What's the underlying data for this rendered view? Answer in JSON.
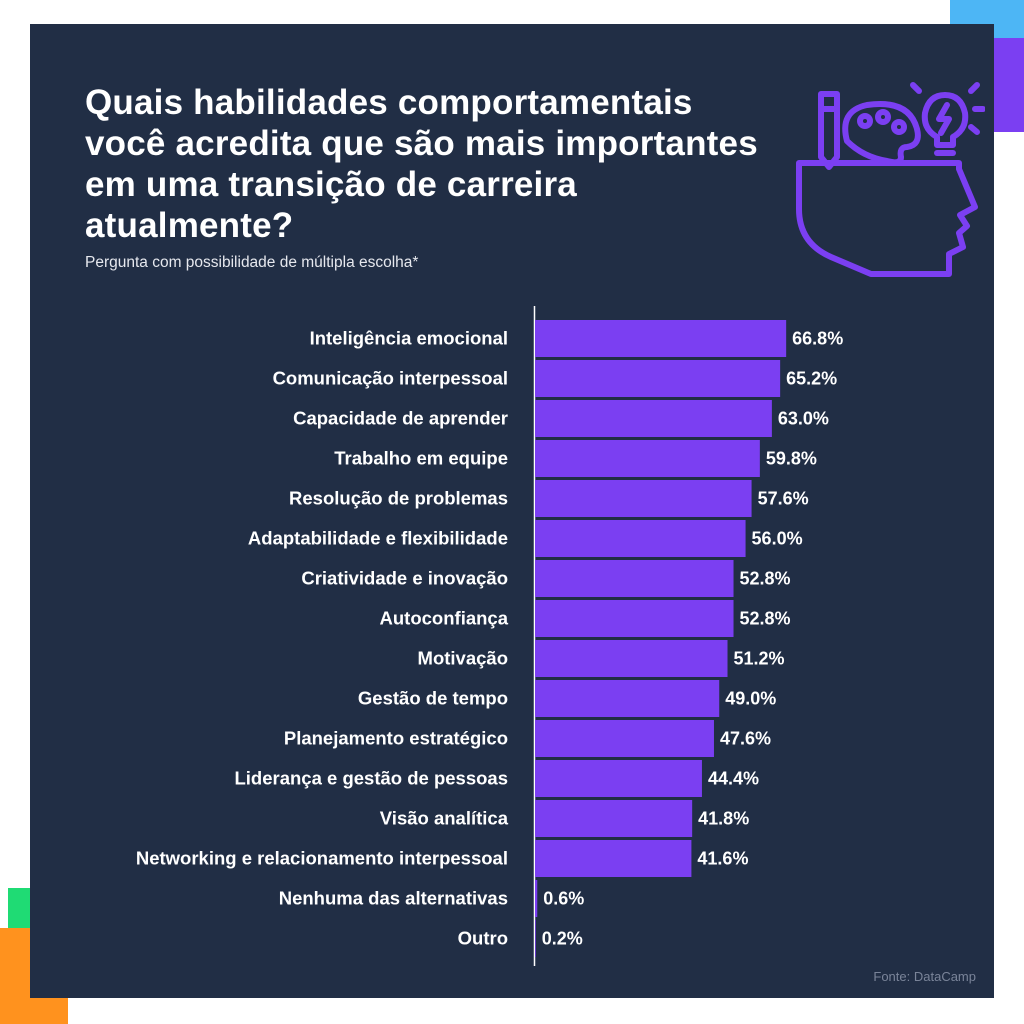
{
  "header": {
    "title": "Quais habilidades comportamentais você acredita que são mais importantes em uma transição de carreira atualmente?",
    "subtitle": "Pergunta com possibilidade de múltipla escolha*"
  },
  "footer": {
    "source": "Fonte: DataCamp"
  },
  "icon": {
    "name": "head-creativity-icon",
    "color": "#7B3FF2"
  },
  "colors": {
    "background": "#212E45",
    "bar": "#7B3FF2",
    "text": "#FFFFFF",
    "accents": [
      "#4DB6F5",
      "#7B3FF2",
      "#1FDB74",
      "#FF921E"
    ]
  },
  "chart_data": {
    "type": "bar",
    "orientation": "horizontal",
    "categories": [
      "Inteligência emocional",
      "Comunicação interpessoal",
      "Capacidade de aprender",
      "Trabalho em equipe",
      "Resolução de problemas",
      "Adaptabilidade e flexibilidade",
      "Criatividade e inovação",
      "Autoconfiança",
      "Motivação",
      "Gestão de tempo",
      "Planejamento estratégico",
      "Liderança e gestão de pessoas",
      "Visão analítica",
      "Networking e relacionamento interpessoal",
      "Nenhuma das alternativas",
      "Outro"
    ],
    "values": [
      66.8,
      65.2,
      63.0,
      59.8,
      57.6,
      56.0,
      52.8,
      52.8,
      51.2,
      49.0,
      47.6,
      44.4,
      41.8,
      41.6,
      0.6,
      0.2
    ],
    "value_labels": [
      "66.8%",
      "65.2%",
      "63.0%",
      "59.8%",
      "57.6%",
      "56.0%",
      "52.8%",
      "52.8%",
      "51.2%",
      "49.0%",
      "47.6%",
      "44.4%",
      "41.8%",
      "41.6%",
      "0.6%",
      "0.2%"
    ],
    "unit": "%",
    "title": "Quais habilidades comportamentais você acredita que são mais importantes em uma transição de carreira atualmente?",
    "xlabel": "",
    "ylabel": "",
    "grid": false,
    "legend": "none"
  }
}
